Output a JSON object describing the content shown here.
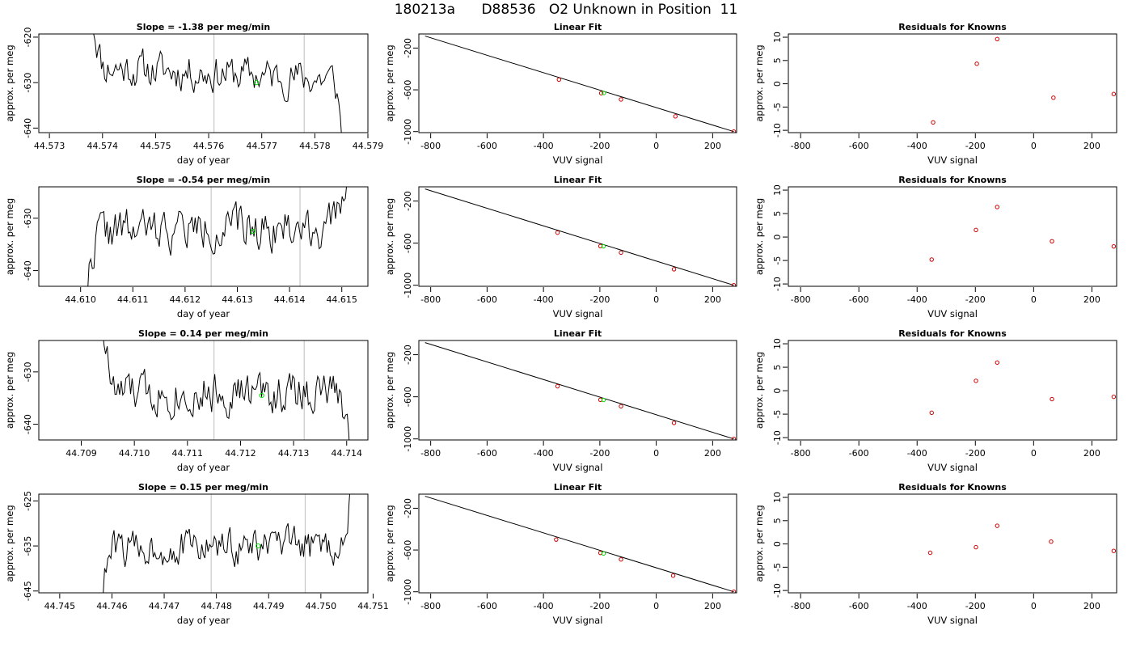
{
  "page": {
    "title": "180213a      D88536   O2 Unknown in Position  11"
  },
  "chart_data": [
    {
      "type": "line",
      "panel": "timeseries",
      "title": "Slope =  -1.38  per meg/min",
      "xlabel": "day of year",
      "ylabel": "approx. per meg",
      "xlim": [
        44.5728,
        44.579
      ],
      "ylim": [
        -641,
        -619.3
      ],
      "xticks": [
        44.573,
        44.574,
        44.575,
        44.576,
        44.577,
        44.578,
        44.579
      ],
      "xtick_labels": [
        "44.573",
        "44.574",
        "44.575",
        "44.576",
        "44.577",
        "44.578",
        "44.579"
      ],
      "yticks": [
        -620,
        -630,
        -640
      ],
      "ytick_labels": [
        "-620",
        "-630",
        "-640"
      ],
      "vlines": [
        44.5761,
        44.5778
      ],
      "mean_point": {
        "x": 44.5769,
        "y": -630
      },
      "signal": {
        "x_start": 44.5738,
        "x_end": 44.5786,
        "base": -626.5,
        "drift": -3,
        "spike_start": 12,
        "spike_end": -25,
        "seed": 11
      }
    },
    {
      "type": "scatter",
      "panel": "linear_fit",
      "title": "Linear Fit",
      "xlabel": "VUV signal",
      "ylabel": "approx. per meg",
      "xlim": [
        -842,
        285
      ],
      "ylim": [
        -1010,
        -65
      ],
      "xticks": [
        -800,
        -600,
        -400,
        -200,
        0,
        200
      ],
      "xtick_labels": [
        "-800",
        "-600",
        "-400",
        "-200",
        "0",
        "200"
      ],
      "yticks": [
        -200,
        -600,
        -1000
      ],
      "ytick_labels": [
        "-200",
        "-600",
        "-1000"
      ],
      "fit_line": {
        "x": [
          -820,
          275
        ],
        "y": [
          -85,
          -1000
        ]
      },
      "knowns": {
        "x": [
          -345,
          -195,
          -125,
          68,
          275
        ],
        "y": [
          -502,
          -632,
          -692,
          -854,
          -1000
        ]
      },
      "unknown": {
        "x": -186,
        "y": -630
      }
    },
    {
      "type": "scatter",
      "panel": "residuals",
      "title": "Residuals for Knowns",
      "xlabel": "VUV signal",
      "ylabel": "approx. per meg",
      "xlim": [
        -842,
        285
      ],
      "ylim": [
        -10.5,
        10.7
      ],
      "xticks": [
        -800,
        -600,
        -400,
        -200,
        0,
        200
      ],
      "xtick_labels": [
        "-800",
        "-600",
        "-400",
        "-200",
        "0",
        "200"
      ],
      "yticks": [
        10,
        5,
        0,
        -5,
        -10
      ],
      "ytick_labels": [
        "10",
        "5",
        "0",
        "-5",
        "-10"
      ],
      "knowns": {
        "x": [
          -345,
          -195,
          -125,
          68,
          275
        ],
        "y": [
          -8.3,
          4.3,
          9.6,
          -3.0,
          -2.2
        ]
      }
    },
    {
      "type": "line",
      "panel": "timeseries",
      "title": "Slope =  -0.54  per meg/min",
      "xlabel": "day of year",
      "ylabel": "approx. per meg",
      "xlim": [
        44.6092,
        44.6155
      ],
      "ylim": [
        -643,
        -624
      ],
      "xticks": [
        44.61,
        44.611,
        44.612,
        44.613,
        44.614,
        44.615
      ],
      "xtick_labels": [
        "44.610",
        "44.611",
        "44.612",
        "44.613",
        "44.614",
        "44.615"
      ],
      "yticks": [
        -630,
        -640
      ],
      "ytick_labels": [
        "-630",
        "-640"
      ],
      "vlines": [
        44.6125,
        44.6142
      ],
      "mean_point": {
        "x": 44.6133,
        "y": -632.5
      },
      "signal": {
        "x_start": 44.6101,
        "x_end": 44.6151,
        "base": -632.5,
        "drift": 1,
        "spike_start": -12,
        "spike_end": 12,
        "seed": 22
      }
    },
    {
      "type": "scatter",
      "panel": "linear_fit",
      "title": "Linear Fit",
      "xlabel": "VUV signal",
      "ylabel": "approx. per meg",
      "xlim": [
        -842,
        285
      ],
      "ylim": [
        -1010,
        -65
      ],
      "xticks": [
        -800,
        -600,
        -400,
        -200,
        0,
        200
      ],
      "xtick_labels": [
        "-800",
        "-600",
        "-400",
        "-200",
        "0",
        "200"
      ],
      "yticks": [
        -200,
        -600,
        -1000
      ],
      "ytick_labels": [
        "-200",
        "-600",
        "-1000"
      ],
      "fit_line": {
        "x": [
          -820,
          275
        ],
        "y": [
          -85,
          -1000
        ]
      },
      "knowns": {
        "x": [
          -350,
          -198,
          -125,
          63,
          275
        ],
        "y": [
          -500,
          -628,
          -690,
          -848,
          -1000
        ]
      },
      "unknown": {
        "x": -187,
        "y": -630
      }
    },
    {
      "type": "scatter",
      "panel": "residuals",
      "title": "Residuals for Knowns",
      "xlabel": "VUV signal",
      "ylabel": "approx. per meg",
      "xlim": [
        -842,
        285
      ],
      "ylim": [
        -10.5,
        10.7
      ],
      "xticks": [
        -800,
        -600,
        -400,
        -200,
        0,
        200
      ],
      "xtick_labels": [
        "-800",
        "-600",
        "-400",
        "-200",
        "0",
        "200"
      ],
      "yticks": [
        10,
        5,
        0,
        -5,
        -10
      ],
      "ytick_labels": [
        "10",
        "5",
        "0",
        "-5",
        "-10"
      ],
      "knowns": {
        "x": [
          -350,
          -198,
          -125,
          63,
          275
        ],
        "y": [
          -4.8,
          1.5,
          6.4,
          -0.9,
          -2.0
        ]
      }
    },
    {
      "type": "line",
      "panel": "timeseries",
      "title": "Slope =  0.14  per meg/min",
      "xlabel": "day of year",
      "ylabel": "approx. per meg",
      "xlim": [
        44.7082,
        44.7144
      ],
      "ylim": [
        -643,
        -624
      ],
      "xticks": [
        44.709,
        44.71,
        44.711,
        44.712,
        44.713,
        44.714
      ],
      "xtick_labels": [
        "44.709",
        "44.710",
        "44.711",
        "44.712",
        "44.713",
        "44.714"
      ],
      "yticks": [
        -630,
        -640
      ],
      "ytick_labels": [
        "-630",
        "-640"
      ],
      "vlines": [
        44.7115,
        44.7132
      ],
      "mean_point": {
        "x": 44.7124,
        "y": -634.5
      },
      "signal": {
        "x_start": 44.7094,
        "x_end": 44.7141,
        "base": -634,
        "drift": 0,
        "spike_start": 14,
        "spike_end": -14,
        "seed": 33
      }
    },
    {
      "type": "scatter",
      "panel": "linear_fit",
      "title": "Linear Fit",
      "xlabel": "VUV signal",
      "ylabel": "approx. per meg",
      "xlim": [
        -842,
        285
      ],
      "ylim": [
        -1010,
        -65
      ],
      "xticks": [
        -800,
        -600,
        -400,
        -200,
        0,
        200
      ],
      "xtick_labels": [
        "-800",
        "-600",
        "-400",
        "-200",
        "0",
        "200"
      ],
      "yticks": [
        -200,
        -600,
        -1000
      ],
      "ytick_labels": [
        "-200",
        "-600",
        "-1000"
      ],
      "fit_line": {
        "x": [
          -820,
          275
        ],
        "y": [
          -85,
          -1000
        ]
      },
      "knowns": {
        "x": [
          -350,
          -198,
          -125,
          63,
          275
        ],
        "y": [
          -500,
          -628,
          -690,
          -848,
          -1000
        ]
      },
      "unknown": {
        "x": -187,
        "y": -630
      }
    },
    {
      "type": "scatter",
      "panel": "residuals",
      "title": "Residuals for Knowns",
      "xlabel": "VUV signal",
      "ylabel": "approx. per meg",
      "xlim": [
        -842,
        285
      ],
      "ylim": [
        -10.5,
        10.7
      ],
      "xticks": [
        -800,
        -600,
        -400,
        -200,
        0,
        200
      ],
      "xtick_labels": [
        "-800",
        "-600",
        "-400",
        "-200",
        "0",
        "200"
      ],
      "yticks": [
        10,
        5,
        0,
        -5,
        -10
      ],
      "ytick_labels": [
        "10",
        "5",
        "0",
        "-5",
        "-10"
      ],
      "knowns": {
        "x": [
          -350,
          -198,
          -125,
          63,
          275
        ],
        "y": [
          -4.7,
          2.1,
          6.0,
          -1.8,
          -1.3
        ]
      }
    },
    {
      "type": "line",
      "panel": "timeseries",
      "title": "Slope =  0.15  per meg/min",
      "xlabel": "day of year",
      "ylabel": "approx. per meg",
      "xlim": [
        44.7446,
        44.7509
      ],
      "ylim": [
        -645.4,
        -623.5
      ],
      "xticks": [
        44.745,
        44.746,
        44.747,
        44.748,
        44.749,
        44.75,
        44.751
      ],
      "xtick_labels": [
        "44.745",
        "44.746",
        "44.747",
        "44.748",
        "44.749",
        "44.750",
        "44.751"
      ],
      "yticks": [
        -625,
        -635,
        -645
      ],
      "ytick_labels": [
        "-625",
        "-635",
        "-645"
      ],
      "vlines": [
        44.7479,
        44.7497
      ],
      "mean_point": {
        "x": 44.7488,
        "y": -635
      },
      "signal": {
        "x_start": 44.7458,
        "x_end": 44.7506,
        "base": -635.5,
        "drift": 0.5,
        "spike_start": -10,
        "spike_end": 13,
        "seed": 44
      }
    },
    {
      "type": "scatter",
      "panel": "linear_fit",
      "title": "Linear Fit",
      "xlabel": "VUV signal",
      "ylabel": "approx. per meg",
      "xlim": [
        -842,
        285
      ],
      "ylim": [
        -1010,
        -65
      ],
      "xticks": [
        -800,
        -600,
        -400,
        -200,
        0,
        200
      ],
      "xtick_labels": [
        "-800",
        "-600",
        "-400",
        "-200",
        "0",
        "200"
      ],
      "yticks": [
        -200,
        -600,
        -1000
      ],
      "ytick_labels": [
        "-200",
        "-600",
        "-1000"
      ],
      "fit_line": {
        "x": [
          -820,
          275
        ],
        "y": [
          -85,
          -1000
        ]
      },
      "knowns": {
        "x": [
          -355,
          -198,
          -125,
          60,
          275
        ],
        "y": [
          -500,
          -628,
          -690,
          -845,
          -1000
        ]
      },
      "unknown": {
        "x": -187,
        "y": -633
      }
    },
    {
      "type": "scatter",
      "panel": "residuals",
      "title": "Residuals for Knowns",
      "xlabel": "VUV signal",
      "ylabel": "approx. per meg",
      "xlim": [
        -842,
        285
      ],
      "ylim": [
        -10.5,
        10.7
      ],
      "xticks": [
        -800,
        -600,
        -400,
        -200,
        0,
        200
      ],
      "xtick_labels": [
        "-800",
        "-600",
        "-400",
        "-200",
        "0",
        "200"
      ],
      "yticks": [
        10,
        5,
        0,
        -5,
        -10
      ],
      "ytick_labels": [
        "10",
        "5",
        "0",
        "-5",
        "-10"
      ],
      "knowns": {
        "x": [
          -355,
          -198,
          -125,
          60,
          275
        ],
        "y": [
          -1.9,
          -0.7,
          3.9,
          0.5,
          -1.5
        ]
      }
    }
  ],
  "colors": {
    "line": "#000000",
    "fit_point": "#cc0000",
    "unknown_point": "#00dd00",
    "vline": "#c8c8c8"
  }
}
